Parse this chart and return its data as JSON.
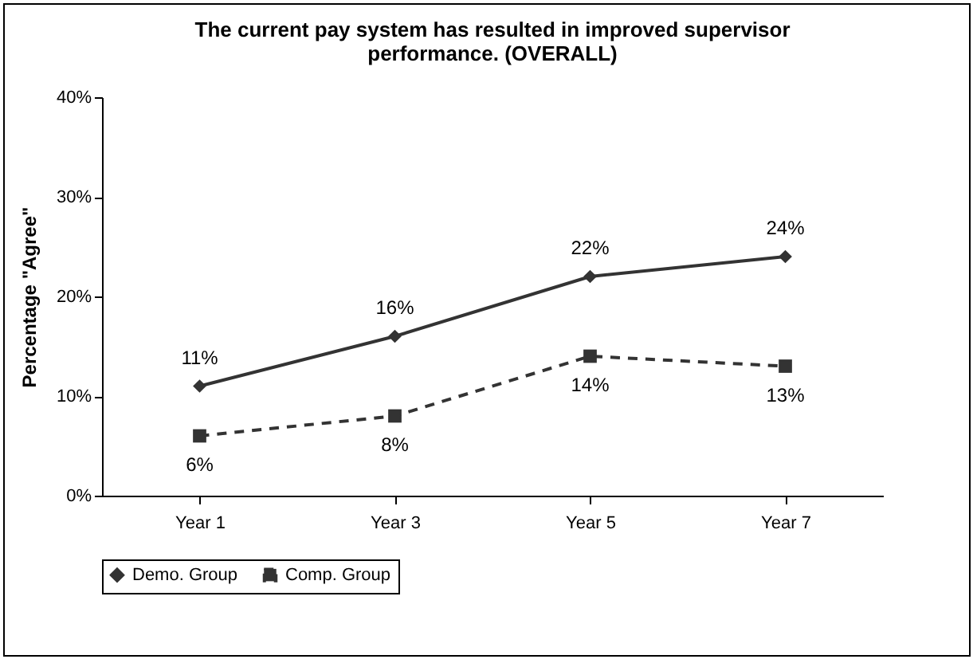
{
  "chart_data": {
    "type": "line",
    "title": "The current pay system has resulted in improved supervisor performance. (OVERALL)",
    "ylabel": "Percentage \"Agree\"",
    "categories": [
      "Year 1",
      "Year 3",
      "Year 5",
      "Year 7"
    ],
    "series": [
      {
        "name": "Demo. Group",
        "color": "#333333",
        "values": [
          11,
          16,
          22,
          24
        ],
        "value_labels": [
          "11%",
          "16%",
          "22%",
          "24%"
        ],
        "marker": "diamond",
        "line_style": "solid"
      },
      {
        "name": "Comp. Group",
        "color": "#333333",
        "values": [
          6,
          8,
          14,
          13
        ],
        "value_labels": [
          "6%",
          "8%",
          "14%",
          "13%"
        ],
        "marker": "square",
        "line_style": "dashed"
      }
    ],
    "ylim": [
      0,
      40
    ],
    "yticks": [
      {
        "value": 0,
        "label": "0%"
      },
      {
        "value": 10,
        "label": "10%"
      },
      {
        "value": 20,
        "label": "20%"
      },
      {
        "value": 30,
        "label": "30%"
      },
      {
        "value": 40,
        "label": "40%"
      }
    ],
    "legend": "bottom",
    "grid": false
  }
}
